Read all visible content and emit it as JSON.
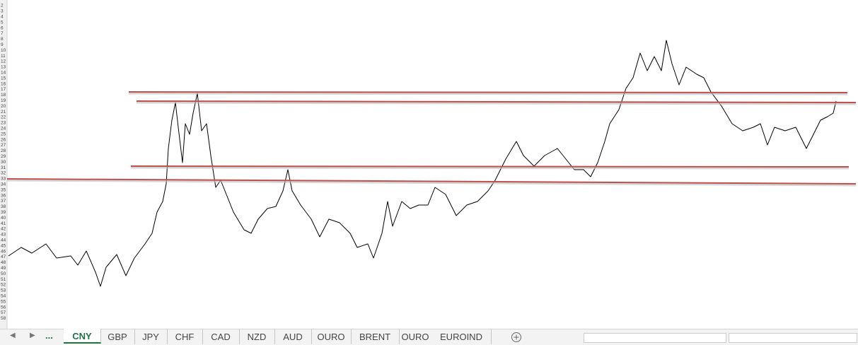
{
  "row_numbers": [
    2,
    3,
    4,
    5,
    6,
    7,
    8,
    9,
    10,
    11,
    12,
    13,
    14,
    15,
    16,
    17,
    18,
    19,
    20,
    21,
    22,
    23,
    24,
    25,
    26,
    27,
    28,
    29,
    30,
    31,
    32,
    33,
    34,
    35,
    36,
    37,
    38,
    39,
    40,
    41,
    42,
    43,
    44,
    45,
    46,
    47,
    48,
    49,
    50,
    51,
    52,
    53,
    54,
    55,
    56,
    57,
    58
  ],
  "sheet_tabs": {
    "overflow": "...",
    "active": 0,
    "tabs": [
      "CNY",
      "GBP",
      "JPY",
      "CHF",
      "CAD",
      "NZD",
      "AUD",
      "OURO",
      "BRENT",
      "OURO",
      "EUROIND"
    ]
  },
  "chart_data": {
    "type": "line",
    "xlim": [
      0,
      1202
    ],
    "ylim": [
      0,
      462
    ],
    "series": [
      {
        "color": "#000000",
        "x": [
          2,
          20,
          35,
          55,
          70,
          90,
          100,
          112,
          125,
          132,
          140,
          155,
          168,
          180,
          195,
          205,
          212,
          220,
          225,
          228,
          233,
          238,
          242,
          248,
          252,
          258,
          263,
          269,
          275,
          282,
          288,
          295,
          302,
          310,
          320,
          335,
          345,
          355,
          368,
          380,
          390,
          397,
          403,
          415,
          430,
          442,
          455,
          470,
          485,
          495,
          510,
          518,
          530,
          538,
          545,
          558,
          570,
          582,
          595,
          605,
          620,
          635,
          650,
          665,
          680,
          690,
          705,
          720,
          730,
          745,
          760,
          778,
          790,
          802,
          815,
          825,
          835,
          845,
          852,
          865,
          875,
          885,
          895,
          905,
          915,
          925,
          932,
          940,
          950,
          960,
          975,
          985,
          995,
          1010,
          1025,
          1040,
          1055,
          1065,
          1075,
          1085,
          1100,
          1115,
          1130,
          1140,
          1150,
          1160,
          1168,
          1172
        ],
        "values": [
          100,
          112,
          104,
          117,
          97,
          100,
          87,
          107,
          77,
          57,
          84,
          102,
          72,
          97,
          117,
          132,
          162,
          177,
          202,
          252,
          292,
          317,
          282,
          232,
          287,
          272,
          302,
          330,
          277,
          287,
          242,
          197,
          207,
          187,
          162,
          137,
          132,
          152,
          167,
          170,
          192,
          222,
          192,
          172,
          152,
          127,
          152,
          147,
          132,
          112,
          117,
          97,
          132,
          177,
          142,
          177,
          167,
          172,
          172,
          197,
          187,
          157,
          172,
          177,
          192,
          207,
          237,
          262,
          242,
          227,
          242,
          252,
          237,
          222,
          222,
          212,
          232,
          262,
          287,
          307,
          337,
          352,
          387,
          362,
          382,
          362,
          405,
          372,
          342,
          367,
          357,
          352,
          332,
          312,
          287,
          277,
          282,
          287,
          257,
          282,
          277,
          282,
          252,
          272,
          292,
          297,
          302,
          319
        ]
      },
      {
        "color": "#c0504d",
        "x": [
          172,
          1188
        ],
        "values": [
          332,
          331
        ]
      },
      {
        "color": "#c0504d",
        "x": [
          183,
          1200
        ],
        "values": [
          319,
          317
        ]
      },
      {
        "color": "#c0504d",
        "x": [
          175,
          1190
        ],
        "values": [
          227,
          226
        ]
      },
      {
        "color": "#c0504d",
        "x": [
          0,
          1200
        ],
        "values": [
          209,
          202
        ]
      }
    ]
  }
}
